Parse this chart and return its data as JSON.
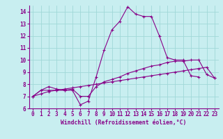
{
  "title": "",
  "xlabel": "Windchill (Refroidissement éolien,°C)",
  "ylabel": "",
  "background_color": "#c8eef0",
  "grid_color": "#a0d8d8",
  "line_color": "#880088",
  "x": [
    0,
    1,
    2,
    3,
    4,
    5,
    6,
    7,
    8,
    9,
    10,
    11,
    12,
    13,
    14,
    15,
    16,
    17,
    18,
    19,
    20,
    21,
    22,
    23
  ],
  "line1": [
    7.0,
    7.5,
    7.5,
    7.5,
    7.5,
    7.5,
    6.3,
    6.6,
    8.6,
    10.8,
    12.5,
    13.2,
    14.4,
    13.8,
    13.6,
    13.6,
    12.0,
    10.2,
    10.0,
    10.0,
    8.7,
    8.6,
    null,
    null
  ],
  "line2": [
    7.0,
    7.5,
    7.8,
    7.6,
    7.5,
    7.6,
    7.0,
    7.0,
    7.8,
    8.2,
    8.4,
    8.6,
    8.9,
    9.1,
    9.3,
    9.5,
    9.6,
    9.8,
    9.9,
    9.9,
    10.0,
    10.0,
    8.8,
    8.5
  ],
  "line3": [
    7.0,
    7.2,
    7.4,
    7.5,
    7.6,
    7.7,
    7.8,
    7.9,
    8.0,
    8.1,
    8.2,
    8.3,
    8.4,
    8.5,
    8.6,
    8.7,
    8.8,
    8.9,
    9.0,
    9.1,
    9.2,
    9.3,
    9.4,
    8.5
  ],
  "ylim": [
    6.0,
    14.5
  ],
  "xlim": [
    -0.5,
    23.5
  ],
  "yticks": [
    6,
    7,
    8,
    9,
    10,
    11,
    12,
    13,
    14
  ],
  "xticks": [
    0,
    1,
    2,
    3,
    4,
    5,
    6,
    7,
    8,
    9,
    10,
    11,
    12,
    13,
    14,
    15,
    16,
    17,
    18,
    19,
    20,
    21,
    22,
    23
  ],
  "tick_fontsize": 5.5,
  "xlabel_fontsize": 5.8
}
